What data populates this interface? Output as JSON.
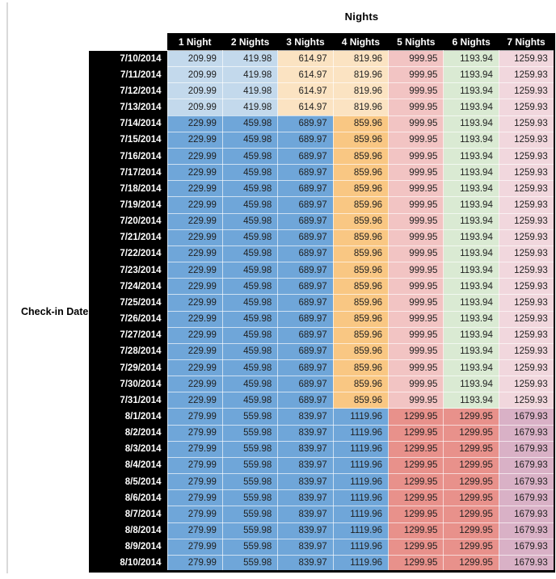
{
  "title": "Nights",
  "row_axis_label": "Check-in Date",
  "colors": {
    "header_bg": "#000000",
    "header_text": "#ffffff",
    "value_text": "#1f1f1f",
    "gridline": "#d9d9d9",
    "light_blue": "#C3D9EC",
    "medium_blue": "#6FA6D9",
    "light_orange": "#FBE3C2",
    "medium_orange": "#F9C783",
    "pink_red": "#F2C4C3",
    "light_green": "#DAEAD3",
    "pale_pink": "#F1D7DD",
    "salmon_red": "#E8918B",
    "mauve": "#D9B1C6"
  },
  "table": {
    "columns": [
      "1 Night",
      "2 Nights",
      "3 Nights",
      "4 Nights",
      "5 Nights",
      "6 Nights",
      "7 Nights"
    ],
    "bands": {
      "early": {
        "cell_colors": [
          "#C3D9EC",
          "#C3D9EC",
          "#FBE3C2",
          "#FBE3C2",
          "#F2C4C3",
          "#DAEAD3",
          "#F1D7DD"
        ]
      },
      "mid": {
        "cell_colors": [
          "#6FA6D9",
          "#6FA6D9",
          "#6FA6D9",
          "#F9C783",
          "#F2C4C3",
          "#DAEAD3",
          "#F1D7DD"
        ]
      },
      "late": {
        "cell_colors": [
          "#6FA6D9",
          "#6FA6D9",
          "#6FA6D9",
          "#6FA6D9",
          "#E8918B",
          "#E8918B",
          "#D9B1C6"
        ]
      }
    },
    "rows": [
      {
        "date": "7/10/2014",
        "band": "early",
        "values": [
          "209.99",
          "419.98",
          "614.97",
          "819.96",
          "999.95",
          "1193.94",
          "1259.93"
        ]
      },
      {
        "date": "7/11/2014",
        "band": "early",
        "values": [
          "209.99",
          "419.98",
          "614.97",
          "819.96",
          "999.95",
          "1193.94",
          "1259.93"
        ]
      },
      {
        "date": "7/12/2014",
        "band": "early",
        "values": [
          "209.99",
          "419.98",
          "614.97",
          "819.96",
          "999.95",
          "1193.94",
          "1259.93"
        ]
      },
      {
        "date": "7/13/2014",
        "band": "early",
        "values": [
          "209.99",
          "419.98",
          "614.97",
          "819.96",
          "999.95",
          "1193.94",
          "1259.93"
        ]
      },
      {
        "date": "7/14/2014",
        "band": "mid",
        "values": [
          "229.99",
          "459.98",
          "689.97",
          "859.96",
          "999.95",
          "1193.94",
          "1259.93"
        ]
      },
      {
        "date": "7/15/2014",
        "band": "mid",
        "values": [
          "229.99",
          "459.98",
          "689.97",
          "859.96",
          "999.95",
          "1193.94",
          "1259.93"
        ]
      },
      {
        "date": "7/16/2014",
        "band": "mid",
        "values": [
          "229.99",
          "459.98",
          "689.97",
          "859.96",
          "999.95",
          "1193.94",
          "1259.93"
        ]
      },
      {
        "date": "7/17/2014",
        "band": "mid",
        "values": [
          "229.99",
          "459.98",
          "689.97",
          "859.96",
          "999.95",
          "1193.94",
          "1259.93"
        ]
      },
      {
        "date": "7/18/2014",
        "band": "mid",
        "values": [
          "229.99",
          "459.98",
          "689.97",
          "859.96",
          "999.95",
          "1193.94",
          "1259.93"
        ]
      },
      {
        "date": "7/19/2014",
        "band": "mid",
        "values": [
          "229.99",
          "459.98",
          "689.97",
          "859.96",
          "999.95",
          "1193.94",
          "1259.93"
        ]
      },
      {
        "date": "7/20/2014",
        "band": "mid",
        "values": [
          "229.99",
          "459.98",
          "689.97",
          "859.96",
          "999.95",
          "1193.94",
          "1259.93"
        ]
      },
      {
        "date": "7/21/2014",
        "band": "mid",
        "values": [
          "229.99",
          "459.98",
          "689.97",
          "859.96",
          "999.95",
          "1193.94",
          "1259.93"
        ]
      },
      {
        "date": "7/22/2014",
        "band": "mid",
        "values": [
          "229.99",
          "459.98",
          "689.97",
          "859.96",
          "999.95",
          "1193.94",
          "1259.93"
        ]
      },
      {
        "date": "7/23/2014",
        "band": "mid",
        "values": [
          "229.99",
          "459.98",
          "689.97",
          "859.96",
          "999.95",
          "1193.94",
          "1259.93"
        ]
      },
      {
        "date": "7/24/2014",
        "band": "mid",
        "values": [
          "229.99",
          "459.98",
          "689.97",
          "859.96",
          "999.95",
          "1193.94",
          "1259.93"
        ]
      },
      {
        "date": "7/25/2014",
        "band": "mid",
        "values": [
          "229.99",
          "459.98",
          "689.97",
          "859.96",
          "999.95",
          "1193.94",
          "1259.93"
        ]
      },
      {
        "date": "7/26/2014",
        "band": "mid",
        "values": [
          "229.99",
          "459.98",
          "689.97",
          "859.96",
          "999.95",
          "1193.94",
          "1259.93"
        ]
      },
      {
        "date": "7/27/2014",
        "band": "mid",
        "values": [
          "229.99",
          "459.98",
          "689.97",
          "859.96",
          "999.95",
          "1193.94",
          "1259.93"
        ]
      },
      {
        "date": "7/28/2014",
        "band": "mid",
        "values": [
          "229.99",
          "459.98",
          "689.97",
          "859.96",
          "999.95",
          "1193.94",
          "1259.93"
        ]
      },
      {
        "date": "7/29/2014",
        "band": "mid",
        "values": [
          "229.99",
          "459.98",
          "689.97",
          "859.96",
          "999.95",
          "1193.94",
          "1259.93"
        ]
      },
      {
        "date": "7/30/2014",
        "band": "mid",
        "values": [
          "229.99",
          "459.98",
          "689.97",
          "859.96",
          "999.95",
          "1193.94",
          "1259.93"
        ]
      },
      {
        "date": "7/31/2014",
        "band": "mid",
        "values": [
          "229.99",
          "459.98",
          "689.97",
          "859.96",
          "999.95",
          "1193.94",
          "1259.93"
        ]
      },
      {
        "date": "8/1/2014",
        "band": "late",
        "values": [
          "279.99",
          "559.98",
          "839.97",
          "1119.96",
          "1299.95",
          "1299.95",
          "1679.93"
        ]
      },
      {
        "date": "8/2/2014",
        "band": "late",
        "values": [
          "279.99",
          "559.98",
          "839.97",
          "1119.96",
          "1299.95",
          "1299.95",
          "1679.93"
        ]
      },
      {
        "date": "8/3/2014",
        "band": "late",
        "values": [
          "279.99",
          "559.98",
          "839.97",
          "1119.96",
          "1299.95",
          "1299.95",
          "1679.93"
        ]
      },
      {
        "date": "8/4/2014",
        "band": "late",
        "values": [
          "279.99",
          "559.98",
          "839.97",
          "1119.96",
          "1299.95",
          "1299.95",
          "1679.93"
        ]
      },
      {
        "date": "8/5/2014",
        "band": "late",
        "values": [
          "279.99",
          "559.98",
          "839.97",
          "1119.96",
          "1299.95",
          "1299.95",
          "1679.93"
        ]
      },
      {
        "date": "8/6/2014",
        "band": "late",
        "values": [
          "279.99",
          "559.98",
          "839.97",
          "1119.96",
          "1299.95",
          "1299.95",
          "1679.93"
        ]
      },
      {
        "date": "8/7/2014",
        "band": "late",
        "values": [
          "279.99",
          "559.98",
          "839.97",
          "1119.96",
          "1299.95",
          "1299.95",
          "1679.93"
        ]
      },
      {
        "date": "8/8/2014",
        "band": "late",
        "values": [
          "279.99",
          "559.98",
          "839.97",
          "1119.96",
          "1299.95",
          "1299.95",
          "1679.93"
        ]
      },
      {
        "date": "8/9/2014",
        "band": "late",
        "values": [
          "279.99",
          "559.98",
          "839.97",
          "1119.96",
          "1299.95",
          "1299.95",
          "1679.93"
        ]
      },
      {
        "date": "8/10/2014",
        "band": "late",
        "values": [
          "279.99",
          "559.98",
          "839.97",
          "1119.96",
          "1299.95",
          "1299.95",
          "1679.93"
        ]
      }
    ]
  }
}
